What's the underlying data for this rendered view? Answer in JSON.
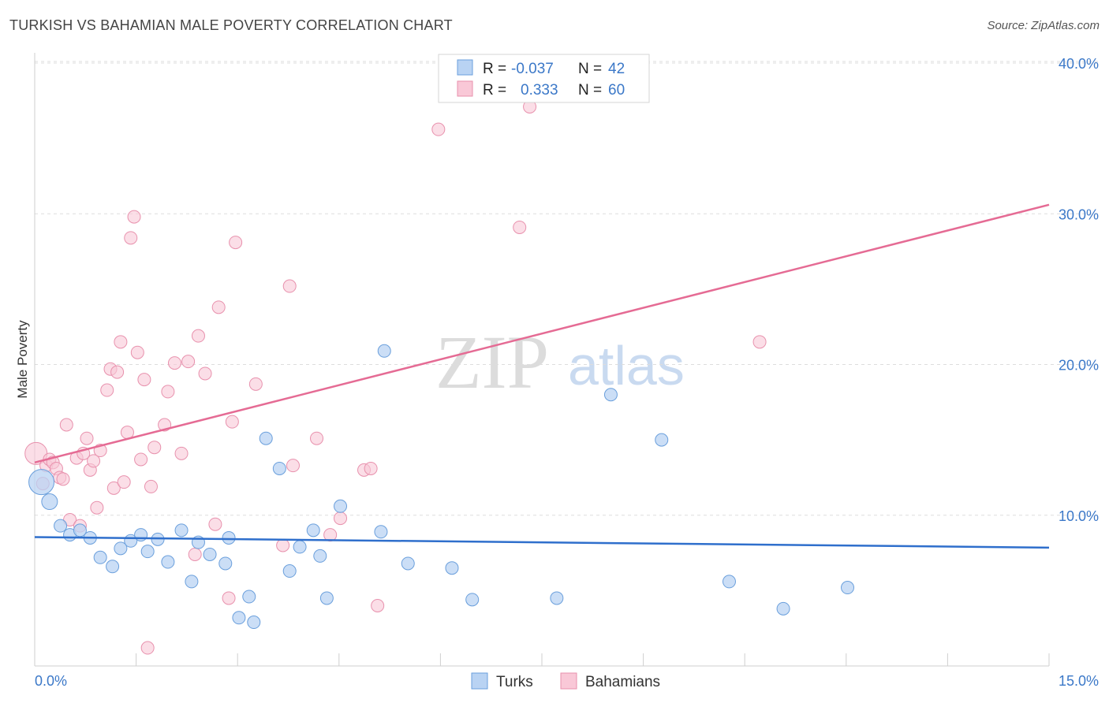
{
  "title": "TURKISH VS BAHAMIAN MALE POVERTY CORRELATION CHART",
  "source": "Source: ZipAtlas.com",
  "watermark": {
    "zip": "ZIP",
    "atlas": "atlas"
  },
  "colors": {
    "turks_fill": "#b9d3f3",
    "turks_stroke": "#6a9fdc",
    "turks_line": "#2f6fcc",
    "bahamians_fill": "#f9c8d7",
    "bahamians_stroke": "#e891ad",
    "bahamians_line": "#e56b94",
    "tick_text": "#3b78c8",
    "grid": "#dddddd"
  },
  "stats": {
    "turks": {
      "r_label": "R =",
      "r_value": "-0.037",
      "n_label": "N =",
      "n_value": "42"
    },
    "bahamians": {
      "r_label": "R =",
      "r_value": "0.333",
      "n_label": "N =",
      "n_value": "60"
    }
  },
  "legend": {
    "turks": "Turks",
    "bahamians": "Bahamians"
  },
  "chart_data": {
    "type": "scatter",
    "title": "TURKISH VS BAHAMIAN MALE POVERTY CORRELATION CHART",
    "xlabel": "",
    "ylabel": "Male Poverty",
    "xlim": [
      0,
      15
    ],
    "ylim": [
      0,
      40
    ],
    "x_tick_labels": [
      "0.0%",
      "15.0%"
    ],
    "y_ticks": [
      10,
      20,
      30,
      40
    ],
    "y_tick_labels": [
      "10.0%",
      "20.0%",
      "30.0%",
      "40.0%"
    ],
    "grid": true,
    "series": [
      {
        "name": "Turks",
        "points": [
          [
            0.1,
            12.2
          ],
          [
            0.22,
            10.9
          ],
          [
            0.38,
            9.3
          ],
          [
            0.52,
            8.7
          ],
          [
            0.67,
            9.0
          ],
          [
            0.82,
            8.5
          ],
          [
            0.97,
            7.2
          ],
          [
            1.15,
            6.6
          ],
          [
            1.27,
            7.8
          ],
          [
            1.42,
            8.3
          ],
          [
            1.57,
            8.7
          ],
          [
            1.67,
            7.6
          ],
          [
            1.82,
            8.4
          ],
          [
            1.97,
            6.9
          ],
          [
            2.17,
            9.0
          ],
          [
            2.32,
            5.6
          ],
          [
            2.42,
            8.2
          ],
          [
            2.59,
            7.4
          ],
          [
            2.82,
            6.8
          ],
          [
            2.87,
            8.5
          ],
          [
            3.02,
            3.2
          ],
          [
            3.17,
            4.6
          ],
          [
            3.24,
            2.9
          ],
          [
            3.42,
            15.1
          ],
          [
            3.62,
            13.1
          ],
          [
            3.77,
            6.3
          ],
          [
            3.92,
            7.9
          ],
          [
            4.12,
            9.0
          ],
          [
            4.22,
            7.3
          ],
          [
            4.32,
            4.5
          ],
          [
            4.52,
            10.6
          ],
          [
            5.12,
            8.9
          ],
          [
            5.17,
            20.9
          ],
          [
            5.52,
            6.8
          ],
          [
            6.17,
            6.5
          ],
          [
            6.47,
            4.4
          ],
          [
            7.72,
            4.5
          ],
          [
            8.52,
            18.0
          ],
          [
            9.27,
            15.0
          ],
          [
            10.27,
            5.6
          ],
          [
            11.07,
            3.8
          ],
          [
            12.02,
            5.2
          ]
        ]
      },
      {
        "name": "Bahamians",
        "points": [
          [
            0.02,
            14.1
          ],
          [
            0.12,
            12.1
          ],
          [
            0.17,
            13.3
          ],
          [
            0.22,
            13.7
          ],
          [
            0.27,
            13.5
          ],
          [
            0.32,
            13.1
          ],
          [
            0.37,
            12.5
          ],
          [
            0.42,
            12.4
          ],
          [
            0.47,
            16.0
          ],
          [
            0.52,
            9.7
          ],
          [
            0.62,
            13.8
          ],
          [
            0.67,
            9.3
          ],
          [
            0.72,
            14.1
          ],
          [
            0.77,
            15.1
          ],
          [
            0.82,
            13.0
          ],
          [
            0.87,
            13.6
          ],
          [
            0.92,
            10.5
          ],
          [
            0.97,
            14.3
          ],
          [
            1.07,
            18.3
          ],
          [
            1.12,
            19.7
          ],
          [
            1.17,
            11.8
          ],
          [
            1.22,
            19.5
          ],
          [
            1.27,
            21.5
          ],
          [
            1.32,
            12.2
          ],
          [
            1.37,
            15.5
          ],
          [
            1.42,
            28.4
          ],
          [
            1.47,
            29.8
          ],
          [
            1.52,
            20.8
          ],
          [
            1.57,
            13.7
          ],
          [
            1.62,
            19.0
          ],
          [
            1.67,
            1.2
          ],
          [
            1.72,
            11.9
          ],
          [
            1.77,
            14.5
          ],
          [
            1.92,
            16.0
          ],
          [
            1.97,
            18.2
          ],
          [
            2.07,
            20.1
          ],
          [
            2.17,
            14.1
          ],
          [
            2.27,
            20.2
          ],
          [
            2.37,
            7.4
          ],
          [
            2.42,
            21.9
          ],
          [
            2.52,
            19.4
          ],
          [
            2.67,
            9.4
          ],
          [
            2.72,
            23.8
          ],
          [
            2.87,
            4.5
          ],
          [
            2.92,
            16.2
          ],
          [
            2.97,
            28.1
          ],
          [
            3.27,
            18.7
          ],
          [
            3.67,
            8.0
          ],
          [
            3.77,
            25.2
          ],
          [
            3.82,
            13.3
          ],
          [
            4.17,
            15.1
          ],
          [
            4.37,
            8.7
          ],
          [
            4.52,
            9.8
          ],
          [
            4.87,
            13.0
          ],
          [
            4.97,
            13.1
          ],
          [
            5.07,
            4.0
          ],
          [
            5.97,
            35.6
          ],
          [
            7.17,
            29.1
          ],
          [
            7.32,
            37.1
          ],
          [
            10.72,
            21.5
          ]
        ]
      }
    ],
    "trend_lines": [
      {
        "name": "Turks",
        "x": [
          0,
          15
        ],
        "y": [
          8.55,
          7.85
        ]
      },
      {
        "name": "Bahamians",
        "x": [
          0,
          15
        ],
        "y": [
          13.5,
          30.6
        ]
      }
    ]
  }
}
